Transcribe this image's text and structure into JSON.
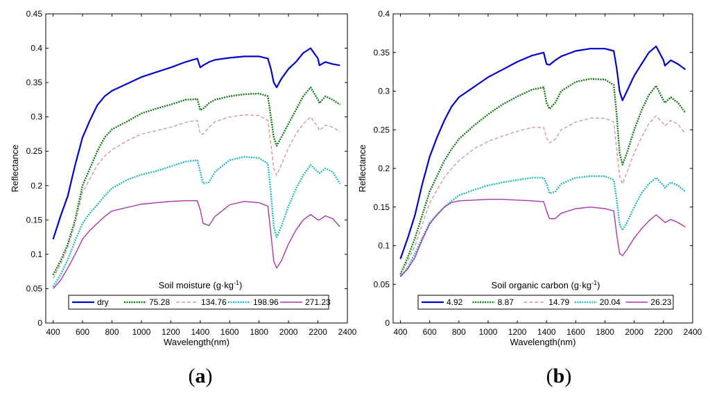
{
  "chart_data": [
    {
      "type": "line",
      "panel_label": "(a)",
      "xlabel": "Wavelength(nm)",
      "ylabel": "Reflectance",
      "xlim": [
        350,
        2400
      ],
      "ylim": [
        0,
        0.45
      ],
      "xticks": [
        400,
        600,
        800,
        1000,
        1200,
        1400,
        1600,
        1800,
        2000,
        2200,
        2400
      ],
      "yticks": [
        0,
        0.05,
        0.1,
        0.15,
        0.2,
        0.25,
        0.3,
        0.35,
        0.4,
        0.45
      ],
      "grid": false,
      "legend": {
        "title": "Soil moisture",
        "unit_base": "(g·kg",
        "unit_sup": "-1",
        "unit_close": ")",
        "placement": "bottom-center",
        "entries": [
          "dry",
          "75.28",
          "134.76",
          "198.96",
          "271.23"
        ]
      },
      "x": [
        400,
        450,
        500,
        550,
        600,
        650,
        700,
        750,
        800,
        900,
        1000,
        1100,
        1200,
        1300,
        1380,
        1400,
        1420,
        1460,
        1500,
        1600,
        1700,
        1800,
        1860,
        1880,
        1900,
        1920,
        1950,
        2000,
        2050,
        2100,
        2150,
        2200,
        2210,
        2250,
        2300,
        2350
      ],
      "series": [
        {
          "name": "dry",
          "color": "#0000cc",
          "dash": "solid",
          "width": 2.2,
          "values": [
            0.122,
            0.155,
            0.185,
            0.23,
            0.27,
            0.295,
            0.317,
            0.33,
            0.338,
            0.348,
            0.358,
            0.365,
            0.372,
            0.38,
            0.385,
            0.372,
            0.375,
            0.38,
            0.383,
            0.386,
            0.388,
            0.388,
            0.385,
            0.37,
            0.35,
            0.343,
            0.355,
            0.37,
            0.38,
            0.393,
            0.4,
            0.385,
            0.375,
            0.38,
            0.377,
            0.375
          ]
        },
        {
          "name": "75.28",
          "color": "#117711",
          "dash": "dotted",
          "width": 2.4,
          "values": [
            0.07,
            0.09,
            0.115,
            0.15,
            0.2,
            0.225,
            0.25,
            0.27,
            0.282,
            0.293,
            0.305,
            0.312,
            0.318,
            0.325,
            0.326,
            0.31,
            0.312,
            0.32,
            0.325,
            0.33,
            0.333,
            0.334,
            0.33,
            0.3,
            0.27,
            0.258,
            0.27,
            0.29,
            0.31,
            0.33,
            0.343,
            0.325,
            0.32,
            0.33,
            0.325,
            0.318
          ]
        },
        {
          "name": "134.76",
          "color": "#cc9999",
          "dash": "dashed",
          "width": 1.4,
          "values": [
            0.065,
            0.085,
            0.11,
            0.145,
            0.19,
            0.21,
            0.23,
            0.243,
            0.252,
            0.265,
            0.275,
            0.28,
            0.285,
            0.292,
            0.295,
            0.275,
            0.275,
            0.285,
            0.293,
            0.3,
            0.303,
            0.302,
            0.295,
            0.26,
            0.225,
            0.215,
            0.23,
            0.255,
            0.275,
            0.29,
            0.3,
            0.285,
            0.28,
            0.288,
            0.285,
            0.278
          ]
        },
        {
          "name": "198.96",
          "color": "#22bbbb",
          "dash": "dotted",
          "width": 2.4,
          "values": [
            0.053,
            0.07,
            0.092,
            0.12,
            0.145,
            0.16,
            0.172,
            0.185,
            0.196,
            0.208,
            0.216,
            0.221,
            0.228,
            0.235,
            0.237,
            0.22,
            0.203,
            0.205,
            0.22,
            0.237,
            0.242,
            0.24,
            0.232,
            0.19,
            0.14,
            0.125,
            0.14,
            0.17,
            0.195,
            0.215,
            0.23,
            0.22,
            0.218,
            0.225,
            0.22,
            0.203
          ]
        },
        {
          "name": "271.23",
          "color": "#aa33aa",
          "dash": "solid",
          "width": 1.4,
          "values": [
            0.05,
            0.062,
            0.08,
            0.1,
            0.122,
            0.135,
            0.145,
            0.155,
            0.163,
            0.168,
            0.173,
            0.175,
            0.177,
            0.178,
            0.178,
            0.165,
            0.145,
            0.142,
            0.155,
            0.172,
            0.177,
            0.175,
            0.17,
            0.13,
            0.09,
            0.08,
            0.09,
            0.115,
            0.135,
            0.15,
            0.158,
            0.15,
            0.15,
            0.156,
            0.152,
            0.14
          ]
        }
      ]
    },
    {
      "type": "line",
      "panel_label": "(b)",
      "xlabel": "Wavelength(nm)",
      "ylabel": "Reflectance",
      "xlim": [
        350,
        2400
      ],
      "ylim": [
        0,
        0.4
      ],
      "xticks": [
        400,
        600,
        800,
        1000,
        1200,
        1400,
        1600,
        1800,
        2000,
        2200,
        2400
      ],
      "yticks": [
        0,
        0.05,
        0.1,
        0.15,
        0.2,
        0.25,
        0.3,
        0.35,
        0.4
      ],
      "grid": false,
      "legend": {
        "title": "Soil organic carbon",
        "unit_base": "(g·kg",
        "unit_sup": "-1",
        "unit_close": ")",
        "placement": "bottom-center",
        "entries": [
          "4.92",
          "8.87",
          "14.79",
          "20.04",
          "26.23"
        ]
      },
      "x": [
        400,
        450,
        500,
        550,
        600,
        650,
        700,
        750,
        800,
        900,
        1000,
        1100,
        1200,
        1300,
        1380,
        1400,
        1420,
        1460,
        1500,
        1600,
        1700,
        1800,
        1860,
        1880,
        1900,
        1920,
        1950,
        2000,
        2050,
        2100,
        2150,
        2200,
        2210,
        2250,
        2300,
        2350
      ],
      "series": [
        {
          "name": "4.92",
          "color": "#0000cc",
          "dash": "solid",
          "width": 2.2,
          "values": [
            0.083,
            0.11,
            0.14,
            0.18,
            0.215,
            0.24,
            0.262,
            0.28,
            0.292,
            0.305,
            0.318,
            0.328,
            0.338,
            0.346,
            0.35,
            0.335,
            0.334,
            0.34,
            0.345,
            0.352,
            0.355,
            0.355,
            0.352,
            0.33,
            0.3,
            0.288,
            0.3,
            0.32,
            0.335,
            0.35,
            0.358,
            0.34,
            0.333,
            0.34,
            0.335,
            0.328
          ]
        },
        {
          "name": "8.87",
          "color": "#117711",
          "dash": "dotted",
          "width": 2.4,
          "values": [
            0.063,
            0.085,
            0.11,
            0.14,
            0.17,
            0.19,
            0.21,
            0.225,
            0.238,
            0.255,
            0.27,
            0.283,
            0.293,
            0.302,
            0.305,
            0.285,
            0.277,
            0.285,
            0.3,
            0.312,
            0.316,
            0.315,
            0.308,
            0.27,
            0.22,
            0.205,
            0.22,
            0.25,
            0.275,
            0.295,
            0.307,
            0.288,
            0.285,
            0.292,
            0.285,
            0.272
          ]
        },
        {
          "name": "14.79",
          "color": "#cc9999",
          "dash": "dashed",
          "width": 1.4,
          "values": [
            0.062,
            0.08,
            0.1,
            0.128,
            0.155,
            0.172,
            0.188,
            0.2,
            0.21,
            0.225,
            0.235,
            0.242,
            0.248,
            0.253,
            0.253,
            0.24,
            0.233,
            0.238,
            0.25,
            0.26,
            0.265,
            0.265,
            0.26,
            0.225,
            0.19,
            0.18,
            0.195,
            0.22,
            0.24,
            0.258,
            0.268,
            0.258,
            0.255,
            0.262,
            0.257,
            0.245
          ]
        },
        {
          "name": "20.04",
          "color": "#22bbbb",
          "dash": "dotted",
          "width": 2.4,
          "values": [
            0.06,
            0.072,
            0.09,
            0.11,
            0.13,
            0.14,
            0.15,
            0.158,
            0.165,
            0.172,
            0.178,
            0.182,
            0.185,
            0.188,
            0.188,
            0.18,
            0.168,
            0.17,
            0.18,
            0.188,
            0.19,
            0.19,
            0.185,
            0.16,
            0.128,
            0.12,
            0.13,
            0.15,
            0.168,
            0.18,
            0.188,
            0.178,
            0.175,
            0.182,
            0.178,
            0.17
          ]
        },
        {
          "name": "26.23",
          "color": "#aa33aa",
          "dash": "solid",
          "width": 1.4,
          "values": [
            0.06,
            0.07,
            0.085,
            0.108,
            0.128,
            0.14,
            0.15,
            0.156,
            0.158,
            0.159,
            0.16,
            0.16,
            0.159,
            0.158,
            0.157,
            0.145,
            0.135,
            0.135,
            0.142,
            0.148,
            0.15,
            0.148,
            0.145,
            0.115,
            0.09,
            0.087,
            0.095,
            0.11,
            0.122,
            0.132,
            0.14,
            0.132,
            0.13,
            0.134,
            0.13,
            0.124
          ]
        }
      ]
    }
  ]
}
